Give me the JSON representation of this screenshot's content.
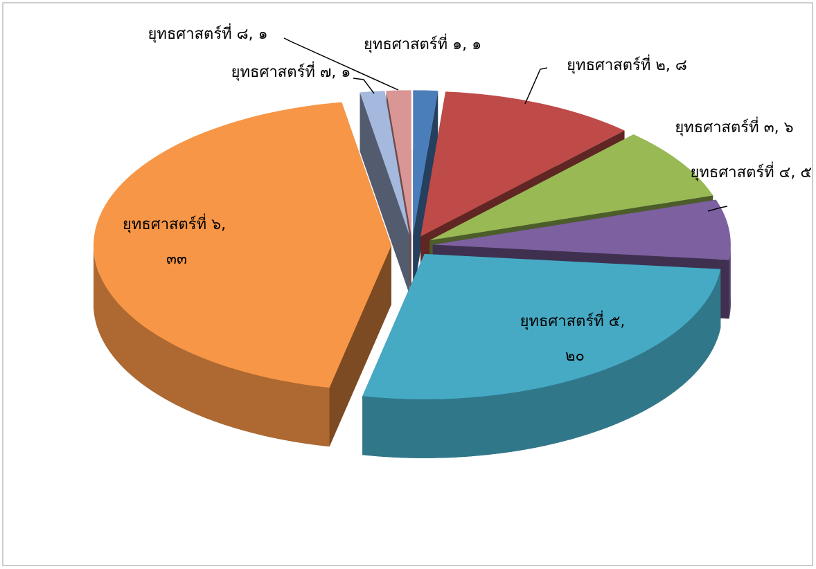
{
  "chart_data": {
    "type": "pie3d",
    "categories": [
      "ยุทธศาสตร์ที่ ๑",
      "ยุทธศาสตร์ที่ ๒",
      "ยุทธศาสตร์ที่ ๓",
      "ยุทธศาสตร์ที่ ๔",
      "ยุทธศาสตร์ที่ ๕",
      "ยุทธศาสตร์ที่ ๖",
      "ยุทธศาสตร์ที่ ๗",
      "ยุทธศาสตร์ที่ ๘"
    ],
    "values": [
      1,
      8,
      6,
      5,
      20,
      33,
      1,
      1
    ],
    "value_labels": [
      "๑",
      "๘",
      "๖",
      "๕",
      "๒๐",
      "๓๓",
      "๑",
      "๑"
    ],
    "label_separator": ", ",
    "colors": [
      "#4a7ebb",
      "#be4b48",
      "#98b954",
      "#7d60a0",
      "#46aac5",
      "#f79646",
      "#a5b8de",
      "#d99694"
    ]
  }
}
